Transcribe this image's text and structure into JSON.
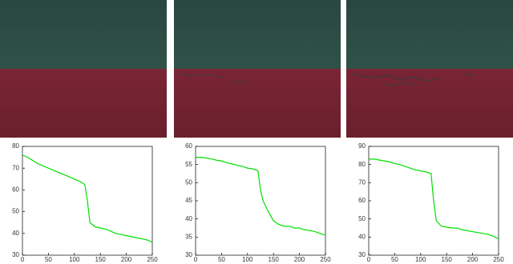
{
  "chart_data": [
    {
      "type": "line",
      "x": [
        0,
        10,
        20,
        30,
        40,
        50,
        60,
        70,
        80,
        90,
        100,
        110,
        120,
        125,
        130,
        140,
        150,
        160,
        170,
        180,
        190,
        200,
        210,
        220,
        230,
        240,
        250
      ],
      "series": [
        {
          "color": "#00e000",
          "values": [
            76,
            75,
            73.5,
            72,
            71,
            70,
            69,
            68,
            67,
            66,
            65,
            64,
            62.5,
            55,
            45,
            43,
            42.5,
            42,
            41,
            40,
            39.5,
            39,
            38.5,
            38,
            37.5,
            37,
            36
          ]
        }
      ],
      "xlim": [
        0,
        250
      ],
      "xticks": [
        0,
        50,
        100,
        150,
        200,
        250
      ],
      "ylim": [
        30,
        80
      ],
      "yticks": [
        30,
        40,
        50,
        60,
        70,
        80
      ]
    },
    {
      "type": "line",
      "x": [
        0,
        10,
        20,
        30,
        40,
        50,
        60,
        70,
        80,
        90,
        100,
        110,
        120,
        125,
        130,
        140,
        150,
        160,
        170,
        180,
        190,
        200,
        210,
        220,
        230,
        240,
        250
      ],
      "series": [
        {
          "color": "#00e000",
          "values": [
            57,
            57,
            56.8,
            56.6,
            56.2,
            56,
            55.5,
            55.2,
            54.8,
            54.5,
            54,
            53.8,
            53.3,
            48,
            45,
            42,
            39.5,
            38.5,
            38,
            38,
            37.5,
            37.5,
            37,
            36.8,
            36.5,
            36,
            35.5
          ]
        }
      ],
      "xlim": [
        0,
        250
      ],
      "xticks": [
        0,
        50,
        100,
        150,
        200,
        250
      ],
      "ylim": [
        30,
        60
      ],
      "yticks": [
        30,
        35,
        40,
        45,
        50,
        55,
        60
      ]
    },
    {
      "type": "line",
      "x": [
        0,
        10,
        20,
        30,
        40,
        50,
        60,
        70,
        80,
        90,
        100,
        110,
        120,
        125,
        130,
        140,
        150,
        160,
        170,
        180,
        190,
        200,
        210,
        220,
        230,
        240,
        250
      ],
      "series": [
        {
          "color": "#00e000",
          "values": [
            83,
            83,
            82.5,
            82,
            81.5,
            80.5,
            80,
            79,
            78,
            77,
            76.5,
            76,
            75,
            60,
            49,
            46,
            45.5,
            45,
            45,
            44,
            43.5,
            43,
            42.5,
            42,
            41.5,
            40.5,
            39
          ]
        }
      ],
      "xlim": [
        0,
        250
      ],
      "xticks": [
        0,
        50,
        100,
        150,
        200,
        250
      ],
      "ylim": [
        30,
        90
      ],
      "yticks": [
        30,
        40,
        50,
        60,
        70,
        80,
        90
      ]
    }
  ]
}
